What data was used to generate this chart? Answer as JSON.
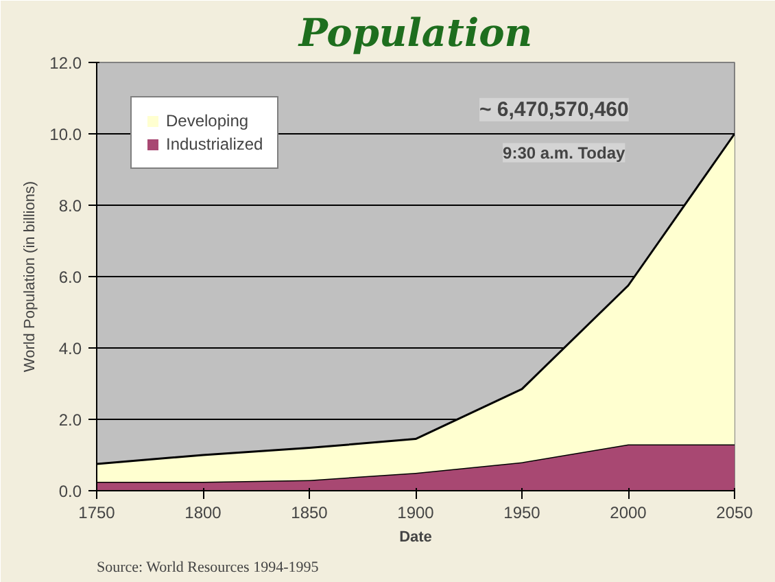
{
  "chart_data": {
    "type": "area",
    "stacked": true,
    "title": "Population",
    "xlabel": "Date",
    "ylabel": "World Population (in billions)",
    "x": [
      1750,
      1800,
      1850,
      1900,
      1950,
      2000,
      2050
    ],
    "series": [
      {
        "name": "Industrialized",
        "color": "#a84872",
        "values": [
          0.25,
          0.25,
          0.3,
          0.5,
          0.8,
          1.3,
          1.3
        ]
      },
      {
        "name": "Developing",
        "color": "#ffffd0",
        "values": [
          0.5,
          0.75,
          0.9,
          0.95,
          2.05,
          4.45,
          8.7
        ]
      }
    ],
    "xlim": [
      1750,
      2050
    ],
    "xticks": [
      1750,
      1800,
      1850,
      1900,
      1950,
      2000,
      2050
    ],
    "ylim": [
      0,
      12
    ],
    "yticks": [
      {
        "value": 0,
        "label": "0.0"
      },
      {
        "value": 2,
        "label": "2.0"
      },
      {
        "value": 4,
        "label": "4.0"
      },
      {
        "value": 6,
        "label": "6.0"
      },
      {
        "value": 8,
        "label": "8.0"
      },
      {
        "value": 10,
        "label": "10.0"
      },
      {
        "value": 12,
        "label": "12.0"
      }
    ],
    "grid": "y",
    "legend": "top left",
    "annotations": [
      "~ 6,470,570,460",
      "9:30 a.m. Today",
      "Source: World Resources 1994-1995"
    ]
  }
}
